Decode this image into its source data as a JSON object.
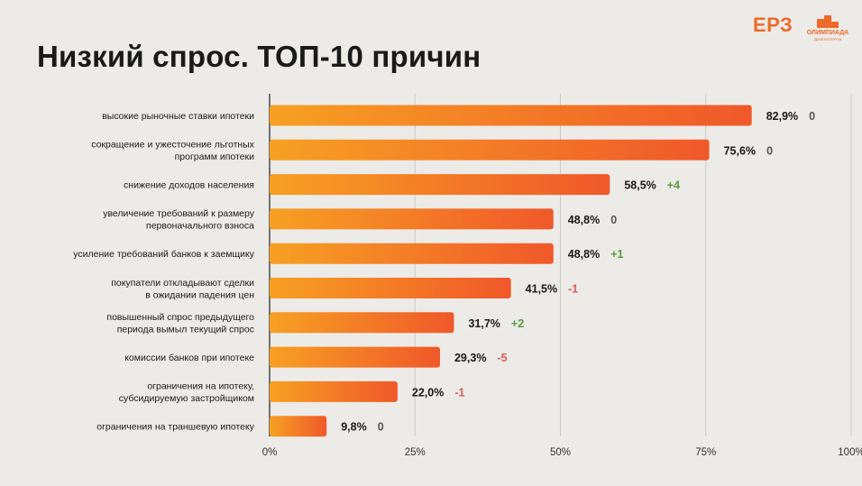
{
  "slide": {
    "title": "Низкий спрос. ТОП-10 причин",
    "logo_text": "ЕРЗ",
    "logo2_line1": "ОЛИМПИАДА",
    "logo2_line2": "ДЕВЕЛОПЕРОВ",
    "accent": "#ee6a2a"
  },
  "chart_data": {
    "type": "bar",
    "orientation": "horizontal",
    "title": "Низкий спрос. ТОП-10 причин",
    "xlim": [
      0,
      100
    ],
    "xticks": [
      0,
      25,
      50,
      75,
      100
    ],
    "xtick_labels": [
      "0%",
      "25%",
      "50%",
      "75%",
      "100%"
    ],
    "grid": true,
    "categories": [
      [
        "высокие рыночные  ставки ипотеки"
      ],
      [
        "сокращение и ужесточение  льготных",
        "программ ипотеки"
      ],
      [
        "снижение доходов населения"
      ],
      [
        "увеличение требований к размеру",
        "первоначального взноса"
      ],
      [
        "усиление требований банков к заемщику"
      ],
      [
        "покупатели откладывают сделки",
        "в ожидании падения цен"
      ],
      [
        "повышенный спрос предыдущего",
        "периода вымыл текущий спрос"
      ],
      [
        "комиссии банков при ипотеке"
      ],
      [
        "ограничения на ипотеку,",
        "субсидируемую застройщиком"
      ],
      [
        "ограничения на траншевую ипотеку"
      ]
    ],
    "values": [
      82.9,
      75.6,
      58.5,
      48.8,
      48.8,
      41.5,
      31.7,
      29.3,
      22.0,
      9.8
    ],
    "value_labels": [
      "82,9%",
      "75,6%",
      "58,5%",
      "48,8%",
      "48,8%",
      "41,5%",
      "31,7%",
      "29,3%",
      "22,0%",
      "9,8%"
    ],
    "changes": [
      "0",
      "0",
      "+4",
      "0",
      "+1",
      "-1",
      "+2",
      "-5",
      "-1",
      "0"
    ],
    "change_colors": {
      "positive": "#5a9a3c",
      "negative": "#e05a55",
      "zero": "#555555"
    },
    "bar_gradient": [
      "#f7a023",
      "#f0582a"
    ]
  }
}
